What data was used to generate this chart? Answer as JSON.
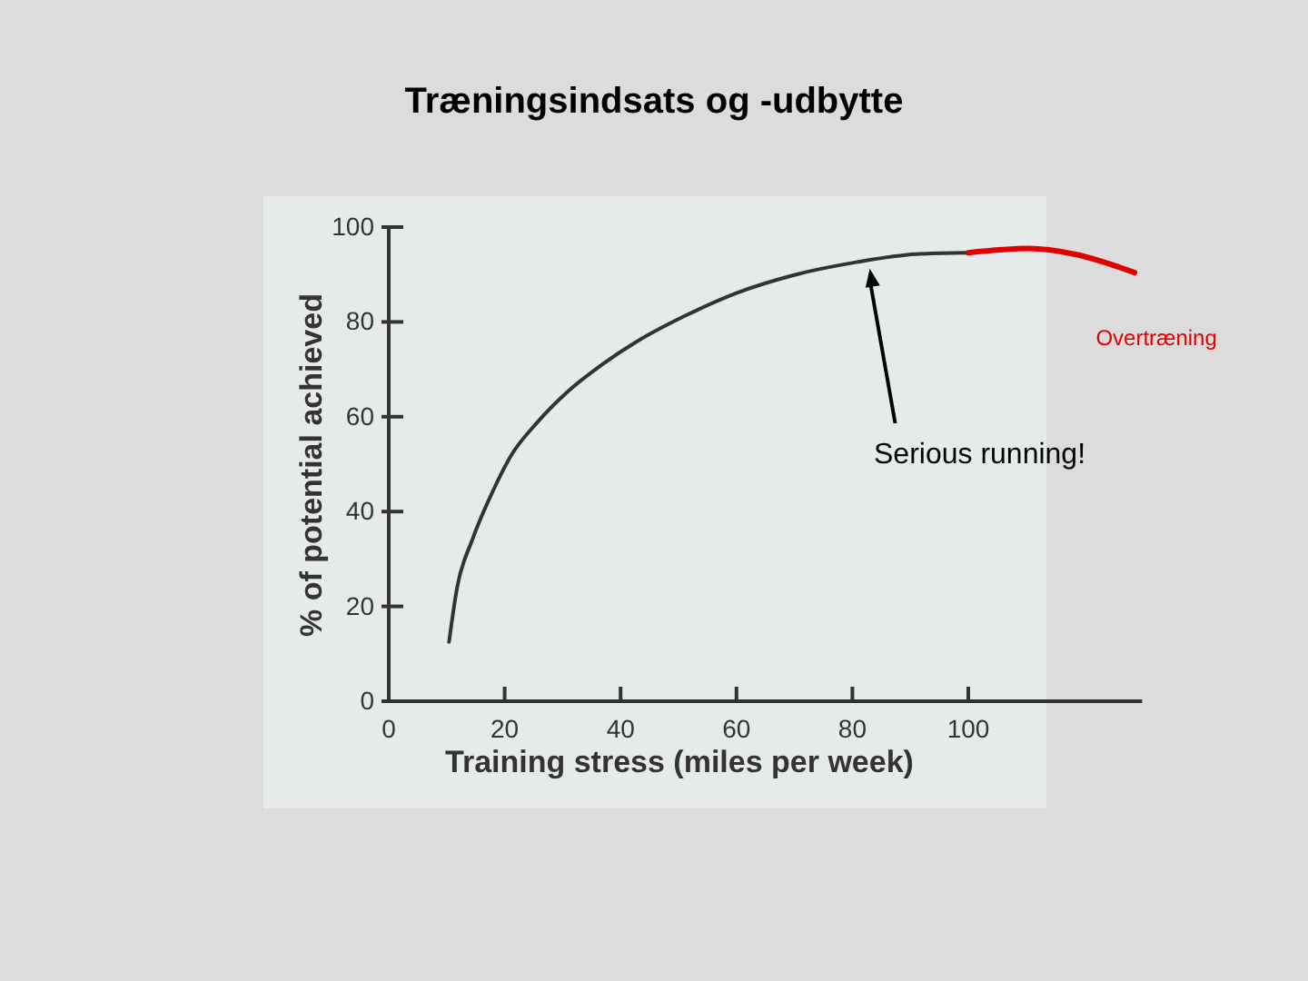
{
  "chart_data": {
    "type": "line",
    "title": "Træningsindsats og -udbytte",
    "xlabel": "Training stress (miles per week)",
    "ylabel": "% of potential achieved",
    "xlim": [
      0,
      130
    ],
    "xticks": [
      0,
      20,
      40,
      60,
      80,
      100
    ],
    "ylim": [
      0,
      100
    ],
    "yticks": [
      0,
      20,
      40,
      60,
      80,
      100
    ],
    "grid": false,
    "legend": false,
    "marker": "none",
    "line_style": "solid",
    "series": [
      {
        "color": "#333333",
        "x": [
          10.4,
          11.8,
          14.4,
          18,
          21.2,
          25.4,
          30.6,
          36.8,
          43,
          51.5,
          59.8,
          70.3,
          80.7,
          91,
          100
        ],
        "values": [
          12.5,
          24,
          34,
          44.4,
          52,
          58.5,
          65,
          71,
          76,
          81.5,
          86,
          90,
          92.6,
          94.3,
          94.6
        ]
      },
      {
        "name": "Overtræning",
        "color": "#e00000",
        "x": [
          100,
          110.4,
          118.3,
          128.7
        ],
        "values": [
          94.6,
          95.5,
          94.3,
          90.4
        ]
      }
    ],
    "annotations": [
      {
        "text": "Serious running!",
        "x": 83,
        "y": 92
      }
    ]
  }
}
